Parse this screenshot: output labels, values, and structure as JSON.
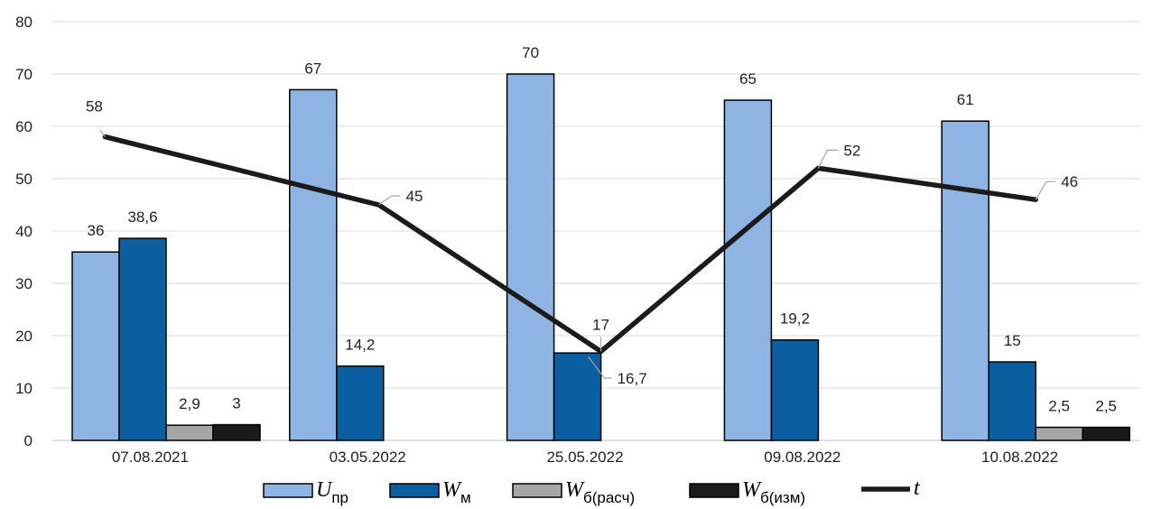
{
  "chart_data": {
    "type": "bar",
    "categories": [
      "07.08.2021",
      "03.05.2022",
      "25.05.2022",
      "09.08.2022",
      "10.08.2022"
    ],
    "ylim": [
      0,
      80
    ],
    "yticks": [
      "0",
      "10",
      "20",
      "30",
      "40",
      "50",
      "60",
      "70",
      "80"
    ],
    "grid": true,
    "legend_position": "bottom",
    "series": [
      {
        "name_main": "U",
        "name_sub": "пр",
        "kind": "bar",
        "color": "#8db4e2",
        "values": [
          36,
          67,
          70,
          65,
          61
        ],
        "labels": [
          "36",
          "67",
          "70",
          "65",
          "61"
        ]
      },
      {
        "name_main": "W",
        "name_sub": "м",
        "kind": "bar",
        "color": "#0b5fa0",
        "values": [
          38.6,
          14.2,
          16.7,
          19.2,
          15
        ],
        "labels": [
          "38,6",
          "14,2",
          "16,7",
          "19,2",
          "15"
        ]
      },
      {
        "name_main": "W",
        "name_sub": "б(расч)",
        "kind": "bar",
        "color": "#a6a6a6",
        "values": [
          2.9,
          null,
          null,
          null,
          2.5
        ],
        "labels": [
          "2,9",
          "",
          "",
          "",
          "2,5"
        ]
      },
      {
        "name_main": "W",
        "name_sub": "б(изм)",
        "kind": "bar",
        "color": "#1c1a1a",
        "values": [
          3,
          null,
          null,
          null,
          2.5
        ],
        "labels": [
          "3",
          "",
          "",
          "",
          "2,5"
        ]
      },
      {
        "name_main": "t",
        "name_sub": "",
        "kind": "line",
        "color": "#1c1a1a",
        "values": [
          58,
          45,
          17,
          52,
          46
        ],
        "labels": [
          "58",
          "45",
          "17",
          "52",
          "46"
        ]
      }
    ]
  }
}
